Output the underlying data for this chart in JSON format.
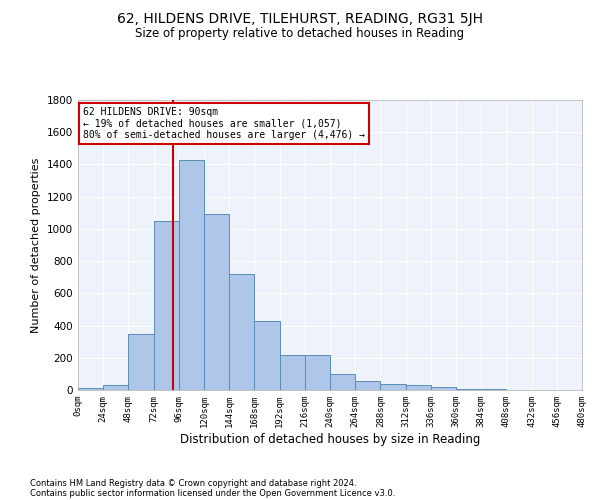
{
  "title": "62, HILDENS DRIVE, TILEHURST, READING, RG31 5JH",
  "subtitle": "Size of property relative to detached houses in Reading",
  "xlabel": "Distribution of detached houses by size in Reading",
  "ylabel": "Number of detached properties",
  "footnote1": "Contains HM Land Registry data © Crown copyright and database right 2024.",
  "footnote2": "Contains public sector information licensed under the Open Government Licence v3.0.",
  "bin_edges": [
    0,
    24,
    48,
    72,
    96,
    120,
    144,
    168,
    192,
    216,
    240,
    264,
    288,
    312,
    336,
    360,
    384,
    408,
    432,
    456,
    480
  ],
  "bar_values": [
    10,
    30,
    350,
    1050,
    1430,
    1090,
    720,
    430,
    215,
    215,
    100,
    55,
    40,
    30,
    20,
    5,
    5,
    2,
    1,
    1
  ],
  "bar_color": "#aec6e8",
  "bar_edge_color": "#5b8db8",
  "vline_x": 90,
  "vline_color": "#cc0000",
  "annotation_text": "62 HILDENS DRIVE: 90sqm\n← 19% of detached houses are smaller (1,057)\n80% of semi-detached houses are larger (4,476) →",
  "annotation_box_color": "#ffffff",
  "annotation_box_edge": "#cc0000",
  "ylim": [
    0,
    1800
  ],
  "yticks": [
    0,
    200,
    400,
    600,
    800,
    1000,
    1200,
    1400,
    1600,
    1800
  ],
  "background_color": "#eef2fb",
  "grid_color": "#ffffff",
  "tick_labels": [
    "0sqm",
    "24sqm",
    "48sqm",
    "72sqm",
    "96sqm",
    "120sqm",
    "144sqm",
    "168sqm",
    "192sqm",
    "216sqm",
    "240sqm",
    "264sqm",
    "288sqm",
    "312sqm",
    "336sqm",
    "360sqm",
    "384sqm",
    "408sqm",
    "432sqm",
    "456sqm",
    "480sqm"
  ]
}
